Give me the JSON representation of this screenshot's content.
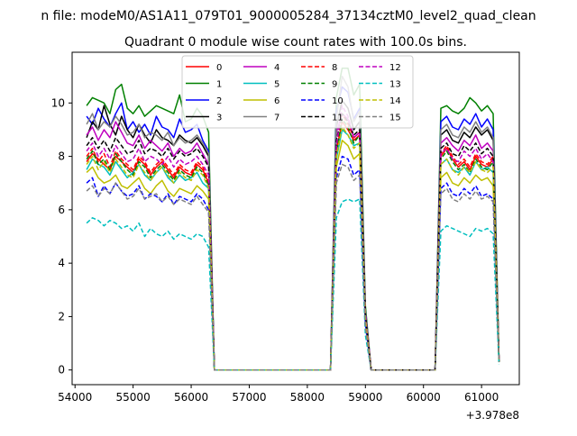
{
  "suptitle": "n file: modeM0/AS1A11_079T01_9000005284_37134cztM0_level2_quad_clean",
  "chart_data": {
    "type": "line",
    "title": "Quadrant 0 module wise count rates with 100.0s bins.",
    "xlabel": "",
    "ylabel": "",
    "x_offset_label": "+3.978e8",
    "xlim": [
      53950,
      61650
    ],
    "ylim": [
      -0.55,
      11.9
    ],
    "xticks": [
      54000,
      55000,
      56000,
      57000,
      58000,
      59000,
      60000,
      61000
    ],
    "yticks": [
      0,
      2,
      4,
      6,
      8,
      10
    ],
    "grid": false,
    "legend": {
      "placement": "top-center",
      "columns": 4
    },
    "segments": [
      {
        "start": 54200,
        "count": 22
      },
      {
        "start": 56400,
        "count": 1
      },
      {
        "start": 56500,
        "count": 20
      },
      {
        "start": 58500,
        "count": 6
      },
      {
        "start": 59100,
        "count": 12
      },
      {
        "start": 60300,
        "count": 11
      }
    ],
    "series": [
      {
        "name": "0",
        "color": "#ff0000",
        "dash": "solid",
        "seg1": [
          7.8,
          8.1,
          7.9,
          7.7,
          7.5,
          8.0,
          7.8,
          7.6,
          7.4,
          7.9,
          7.7,
          7.3,
          7.6,
          7.8,
          7.5,
          7.2,
          7.6,
          7.4,
          7.3,
          7.7,
          7.5,
          7.0
        ],
        "peak": [
          8.2,
          9.3,
          9.0,
          8.6,
          8.8,
          2.0
        ],
        "seg3": [
          8.0,
          8.3,
          7.9,
          7.6,
          7.8,
          7.5,
          8.0,
          7.7,
          7.6,
          7.9,
          0.3
        ]
      },
      {
        "name": "1",
        "color": "#008000",
        "dash": "solid",
        "seg1": [
          9.9,
          10.2,
          10.1,
          10.0,
          9.6,
          10.5,
          10.7,
          9.8,
          9.6,
          9.9,
          9.5,
          9.7,
          9.9,
          9.8,
          9.7,
          9.6,
          10.3,
          9.3,
          9.4,
          9.8,
          9.5,
          8.9
        ],
        "peak": [
          10.2,
          11.3,
          11.3,
          10.3,
          10.7,
          2.4
        ],
        "seg3": [
          9.8,
          9.9,
          9.7,
          9.6,
          9.8,
          10.2,
          10.0,
          9.7,
          9.9,
          9.6,
          0.4
        ]
      },
      {
        "name": "2",
        "color": "#0000ff",
        "dash": "solid",
        "seg1": [
          9.5,
          9.2,
          9.8,
          9.4,
          9.1,
          9.6,
          10.0,
          9.0,
          9.3,
          8.9,
          9.2,
          8.8,
          9.5,
          9.1,
          9.0,
          8.7,
          9.4,
          8.9,
          9.0,
          9.2,
          8.6,
          8.2
        ],
        "peak": [
          9.7,
          10.6,
          10.4,
          9.4,
          9.8,
          2.2
        ],
        "seg3": [
          9.3,
          9.5,
          9.1,
          9.0,
          9.4,
          9.2,
          9.6,
          9.1,
          9.4,
          9.0,
          0.3
        ]
      },
      {
        "name": "3",
        "color": "#000000",
        "dash": "solid",
        "seg1": [
          8.7,
          9.3,
          9.0,
          9.9,
          9.2,
          8.8,
          9.5,
          9.0,
          8.7,
          9.2,
          8.8,
          8.5,
          9.0,
          8.7,
          8.6,
          8.4,
          8.8,
          8.6,
          8.5,
          8.7,
          8.4,
          8.0
        ],
        "peak": [
          9.1,
          10.1,
          9.8,
          9.0,
          9.3,
          2.1
        ],
        "seg3": [
          8.8,
          9.0,
          8.6,
          8.5,
          8.9,
          8.7,
          9.1,
          8.8,
          9.0,
          8.6,
          0.3
        ]
      },
      {
        "name": "4",
        "color": "#bf00bf",
        "dash": "solid",
        "seg1": [
          8.8,
          9.1,
          8.6,
          9.0,
          8.7,
          9.3,
          8.9,
          8.5,
          8.4,
          8.8,
          8.3,
          8.6,
          8.4,
          8.2,
          8.5,
          8.0,
          8.3,
          8.1,
          8.2,
          8.5,
          8.1,
          7.7
        ],
        "peak": [
          8.9,
          9.6,
          9.4,
          8.7,
          8.9,
          2.1
        ],
        "seg3": [
          8.5,
          8.7,
          8.4,
          8.2,
          8.6,
          8.4,
          8.8,
          8.3,
          8.5,
          8.2,
          0.3
        ]
      },
      {
        "name": "5",
        "color": "#00bfbf",
        "dash": "solid",
        "seg1": [
          7.5,
          7.9,
          7.7,
          7.6,
          7.3,
          7.8,
          7.5,
          7.2,
          7.4,
          7.7,
          7.3,
          7.1,
          7.4,
          7.6,
          7.2,
          7.0,
          7.3,
          7.1,
          7.2,
          7.4,
          7.0,
          6.8
        ],
        "peak": [
          7.9,
          9.0,
          8.8,
          8.4,
          8.5,
          1.9
        ],
        "seg3": [
          7.7,
          7.9,
          7.5,
          7.4,
          7.6,
          7.3,
          7.8,
          7.5,
          7.6,
          7.4,
          0.3
        ]
      },
      {
        "name": "6",
        "color": "#bfbf00",
        "dash": "solid",
        "seg1": [
          7.4,
          7.6,
          7.2,
          7.0,
          7.1,
          7.3,
          6.9,
          6.8,
          7.0,
          7.2,
          6.8,
          6.6,
          6.9,
          7.1,
          6.7,
          6.5,
          6.8,
          6.7,
          6.6,
          6.9,
          6.7,
          6.4
        ],
        "peak": [
          7.6,
          8.6,
          8.4,
          7.9,
          8.1,
          1.8
        ],
        "seg3": [
          7.2,
          7.4,
          7.0,
          6.9,
          7.2,
          7.0,
          7.3,
          7.1,
          7.2,
          6.9,
          0.3
        ]
      },
      {
        "name": "7",
        "color": "#808080",
        "dash": "solid",
        "seg1": [
          9.2,
          9.6,
          9.0,
          9.3,
          9.1,
          9.5,
          9.2,
          8.8,
          8.9,
          9.2,
          8.7,
          8.9,
          8.8,
          8.6,
          8.9,
          8.4,
          8.7,
          8.5,
          8.6,
          8.8,
          8.5,
          8.1
        ],
        "peak": [
          9.4,
          11.0,
          10.6,
          9.3,
          9.7,
          2.2
        ],
        "seg3": [
          9.0,
          9.2,
          8.8,
          8.7,
          9.1,
          8.9,
          9.3,
          8.9,
          9.1,
          8.7,
          0.3
        ]
      },
      {
        "name": "8",
        "color": "#ff0000",
        "dash": "dashed",
        "seg1": [
          8.0,
          8.3,
          7.8,
          8.1,
          7.6,
          8.2,
          7.9,
          7.7,
          7.5,
          8.0,
          7.8,
          7.4,
          7.7,
          7.9,
          7.6,
          7.3,
          7.7,
          7.5,
          7.4,
          7.8,
          7.6,
          7.1
        ],
        "peak": [
          8.3,
          9.6,
          9.2,
          8.7,
          8.9,
          2.0
        ],
        "seg3": [
          8.1,
          8.4,
          8.0,
          7.7,
          7.9,
          7.6,
          8.1,
          7.8,
          7.7,
          8.0,
          0.3
        ]
      },
      {
        "name": "9",
        "color": "#008000",
        "dash": "dashed",
        "seg1": [
          7.9,
          8.2,
          7.7,
          7.9,
          7.5,
          8.1,
          7.8,
          7.5,
          7.3,
          7.8,
          7.6,
          7.2,
          7.5,
          7.7,
          7.4,
          7.1,
          7.5,
          7.3,
          7.2,
          7.6,
          7.4,
          6.9
        ],
        "peak": [
          8.1,
          9.4,
          9.1,
          8.5,
          8.8,
          2.0
        ],
        "seg3": [
          7.9,
          8.2,
          7.8,
          7.5,
          7.7,
          7.4,
          7.9,
          7.6,
          7.5,
          7.8,
          0.3
        ]
      },
      {
        "name": "10",
        "color": "#0000ff",
        "dash": "dashed",
        "seg1": [
          7.0,
          7.2,
          6.5,
          6.9,
          6.6,
          7.0,
          6.7,
          6.5,
          6.6,
          6.9,
          6.4,
          6.6,
          6.5,
          6.3,
          6.6,
          6.2,
          6.5,
          6.4,
          6.3,
          6.6,
          6.4,
          6.0
        ],
        "peak": [
          7.2,
          8.0,
          7.9,
          7.3,
          7.5,
          1.7
        ],
        "seg3": [
          6.8,
          7.0,
          6.6,
          6.5,
          6.8,
          6.6,
          6.9,
          6.5,
          6.6,
          6.4,
          0.3
        ]
      },
      {
        "name": "11",
        "color": "#000000",
        "dash": "dashed",
        "seg1": [
          8.4,
          8.7,
          8.3,
          8.6,
          8.2,
          8.7,
          8.4,
          8.1,
          8.2,
          8.6,
          8.1,
          8.3,
          8.2,
          8.0,
          8.3,
          7.9,
          8.2,
          8.0,
          8.1,
          8.3,
          8.0,
          7.6
        ],
        "peak": [
          8.6,
          9.6,
          9.3,
          8.8,
          9.0,
          2.1
        ],
        "seg3": [
          8.3,
          8.5,
          8.1,
          8.0,
          8.4,
          8.2,
          8.5,
          8.1,
          8.3,
          8.0,
          0.3
        ]
      },
      {
        "name": "12",
        "color": "#bf00bf",
        "dash": "dashed",
        "seg1": [
          8.2,
          8.5,
          8.0,
          8.3,
          7.9,
          8.4,
          8.1,
          7.8,
          7.9,
          8.3,
          7.8,
          8.0,
          7.9,
          7.7,
          8.0,
          7.6,
          7.9,
          7.7,
          7.8,
          8.0,
          7.7,
          7.3
        ],
        "peak": [
          8.4,
          9.9,
          9.5,
          8.7,
          8.9,
          2.1
        ],
        "seg3": [
          8.1,
          8.3,
          7.9,
          7.8,
          8.2,
          8.0,
          8.3,
          7.9,
          8.1,
          7.8,
          0.3
        ]
      },
      {
        "name": "13",
        "color": "#00bfbf",
        "dash": "dashed",
        "seg1": [
          5.5,
          5.7,
          5.6,
          5.4,
          5.6,
          5.5,
          5.3,
          5.4,
          5.2,
          5.5,
          5.0,
          5.3,
          5.1,
          5.0,
          5.2,
          4.9,
          5.1,
          5.0,
          4.9,
          5.1,
          5.0,
          4.6
        ],
        "peak": [
          5.7,
          6.3,
          6.4,
          6.3,
          6.4,
          1.3
        ],
        "seg3": [
          5.2,
          5.4,
          5.3,
          5.2,
          5.1,
          5.0,
          5.3,
          5.2,
          5.3,
          5.1,
          0.2
        ]
      },
      {
        "name": "14",
        "color": "#bfbf00",
        "dash": "dashed",
        "seg1": [
          7.7,
          8.0,
          7.5,
          7.8,
          7.4,
          7.9,
          7.6,
          7.3,
          7.2,
          7.7,
          7.4,
          7.1,
          7.4,
          7.6,
          7.3,
          7.0,
          7.4,
          7.2,
          7.1,
          7.5,
          7.3,
          6.8
        ],
        "peak": [
          8.0,
          9.1,
          8.8,
          8.3,
          8.5,
          1.9
        ],
        "seg3": [
          7.7,
          7.9,
          7.5,
          7.3,
          7.6,
          7.4,
          7.8,
          7.5,
          7.4,
          7.6,
          0.3
        ]
      },
      {
        "name": "15",
        "color": "#808080",
        "dash": "dashed",
        "seg1": [
          6.7,
          6.9,
          6.5,
          6.8,
          6.6,
          7.0,
          6.7,
          6.4,
          6.5,
          6.8,
          6.4,
          6.5,
          6.6,
          6.3,
          6.5,
          6.2,
          6.4,
          6.3,
          6.2,
          6.5,
          6.2,
          5.9
        ],
        "peak": [
          7.0,
          7.7,
          7.6,
          7.1,
          7.3,
          1.6
        ],
        "seg3": [
          6.6,
          6.8,
          6.4,
          6.3,
          6.6,
          6.4,
          6.7,
          6.4,
          6.5,
          6.3,
          0.3
        ]
      }
    ]
  }
}
